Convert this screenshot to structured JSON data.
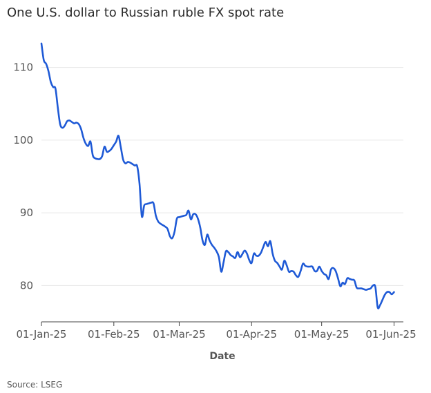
{
  "chart_data": {
    "type": "line",
    "title": "One U.S. dollar to Russian ruble FX spot rate",
    "xlabel": "Date",
    "ylabel": "",
    "source": "Source: LSEG",
    "xlim": [
      "2025-01-01",
      "2025-06-05"
    ],
    "ylim": [
      75,
      115
    ],
    "grid": true,
    "legend": "none",
    "x_ticks": [
      {
        "date": "2025-01-01",
        "label": "01-Jan-25"
      },
      {
        "date": "2025-02-01",
        "label": "01-Feb-25"
      },
      {
        "date": "2025-03-01",
        "label": "01-Mar-25"
      },
      {
        "date": "2025-04-01",
        "label": "01-Apr-25"
      },
      {
        "date": "2025-05-01",
        "label": "01-May-25"
      },
      {
        "date": "2025-06-01",
        "label": "01-Jun-25"
      }
    ],
    "y_ticks": [
      {
        "value": 80,
        "label": "80"
      },
      {
        "value": 90,
        "label": "90"
      },
      {
        "value": 100,
        "label": "100"
      },
      {
        "value": 110,
        "label": "110"
      }
    ],
    "series": [
      {
        "name": "",
        "color": "#1f5ad6",
        "points": [
          [
            "2025-01-01",
            113.3
          ],
          [
            "2025-01-02",
            111.0
          ],
          [
            "2025-01-03",
            110.5
          ],
          [
            "2025-01-04",
            109.5
          ],
          [
            "2025-01-05",
            108.0
          ],
          [
            "2025-01-06",
            107.3
          ],
          [
            "2025-01-07",
            107.1
          ],
          [
            "2025-01-08",
            104.5
          ],
          [
            "2025-01-09",
            102.2
          ],
          [
            "2025-01-10",
            101.7
          ],
          [
            "2025-01-11",
            102.0
          ],
          [
            "2025-01-12",
            102.6
          ],
          [
            "2025-01-13",
            102.7
          ],
          [
            "2025-01-14",
            102.5
          ],
          [
            "2025-01-15",
            102.3
          ],
          [
            "2025-01-16",
            102.4
          ],
          [
            "2025-01-17",
            102.2
          ],
          [
            "2025-01-18",
            101.5
          ],
          [
            "2025-01-19",
            100.3
          ],
          [
            "2025-01-20",
            99.5
          ],
          [
            "2025-01-21",
            99.2
          ],
          [
            "2025-01-22",
            99.8
          ],
          [
            "2025-01-23",
            97.9
          ],
          [
            "2025-01-24",
            97.5
          ],
          [
            "2025-01-25",
            97.4
          ],
          [
            "2025-01-26",
            97.4
          ],
          [
            "2025-01-27",
            97.8
          ],
          [
            "2025-01-28",
            99.1
          ],
          [
            "2025-01-29",
            98.4
          ],
          [
            "2025-01-30",
            98.5
          ],
          [
            "2025-01-31",
            98.8
          ],
          [
            "2025-02-01",
            99.3
          ],
          [
            "2025-02-02",
            99.8
          ],
          [
            "2025-02-03",
            100.6
          ],
          [
            "2025-02-04",
            99.0
          ],
          [
            "2025-02-05",
            97.3
          ],
          [
            "2025-02-06",
            96.8
          ],
          [
            "2025-02-07",
            97.0
          ],
          [
            "2025-02-08",
            96.9
          ],
          [
            "2025-02-09",
            96.7
          ],
          [
            "2025-02-10",
            96.5
          ],
          [
            "2025-02-11",
            96.4
          ],
          [
            "2025-02-12",
            94.0
          ],
          [
            "2025-02-13",
            89.5
          ],
          [
            "2025-02-14",
            91.0
          ],
          [
            "2025-02-15",
            91.2
          ],
          [
            "2025-02-16",
            91.3
          ],
          [
            "2025-02-17",
            91.4
          ],
          [
            "2025-02-18",
            91.3
          ],
          [
            "2025-02-19",
            89.6
          ],
          [
            "2025-02-20",
            88.8
          ],
          [
            "2025-02-21",
            88.5
          ],
          [
            "2025-02-22",
            88.3
          ],
          [
            "2025-02-23",
            88.1
          ],
          [
            "2025-02-24",
            87.8
          ],
          [
            "2025-02-25",
            86.8
          ],
          [
            "2025-02-26",
            86.5
          ],
          [
            "2025-02-27",
            87.4
          ],
          [
            "2025-02-28",
            89.2
          ],
          [
            "2025-03-01",
            89.4
          ],
          [
            "2025-03-02",
            89.5
          ],
          [
            "2025-03-03",
            89.6
          ],
          [
            "2025-03-04",
            89.7
          ],
          [
            "2025-03-05",
            90.3
          ],
          [
            "2025-03-06",
            89.1
          ],
          [
            "2025-03-07",
            89.8
          ],
          [
            "2025-03-08",
            89.8
          ],
          [
            "2025-03-09",
            89.2
          ],
          [
            "2025-03-10",
            88.0
          ],
          [
            "2025-03-11",
            86.2
          ],
          [
            "2025-03-12",
            85.6
          ],
          [
            "2025-03-13",
            87.0
          ],
          [
            "2025-03-14",
            86.2
          ],
          [
            "2025-03-15",
            85.6
          ],
          [
            "2025-03-16",
            85.2
          ],
          [
            "2025-03-17",
            84.7
          ],
          [
            "2025-03-18",
            83.9
          ],
          [
            "2025-03-19",
            81.9
          ],
          [
            "2025-03-20",
            83.2
          ],
          [
            "2025-03-21",
            84.7
          ],
          [
            "2025-03-22",
            84.6
          ],
          [
            "2025-03-23",
            84.2
          ],
          [
            "2025-03-24",
            84.0
          ],
          [
            "2025-03-25",
            83.8
          ],
          [
            "2025-03-26",
            84.6
          ],
          [
            "2025-03-27",
            83.9
          ],
          [
            "2025-03-28",
            84.3
          ],
          [
            "2025-03-29",
            84.8
          ],
          [
            "2025-03-30",
            84.4
          ],
          [
            "2025-03-31",
            83.5
          ],
          [
            "2025-04-01",
            83.1
          ],
          [
            "2025-04-02",
            84.4
          ],
          [
            "2025-04-03",
            84.1
          ],
          [
            "2025-04-04",
            84.1
          ],
          [
            "2025-04-05",
            84.5
          ],
          [
            "2025-04-06",
            85.3
          ],
          [
            "2025-04-07",
            86.0
          ],
          [
            "2025-04-08",
            85.4
          ],
          [
            "2025-04-09",
            86.1
          ],
          [
            "2025-04-10",
            84.4
          ],
          [
            "2025-04-11",
            83.4
          ],
          [
            "2025-04-12",
            83.1
          ],
          [
            "2025-04-13",
            82.6
          ],
          [
            "2025-04-14",
            82.2
          ],
          [
            "2025-04-15",
            83.4
          ],
          [
            "2025-04-16",
            82.8
          ],
          [
            "2025-04-17",
            81.9
          ],
          [
            "2025-04-18",
            82.0
          ],
          [
            "2025-04-19",
            81.9
          ],
          [
            "2025-04-20",
            81.4
          ],
          [
            "2025-04-21",
            81.2
          ],
          [
            "2025-04-22",
            82.0
          ],
          [
            "2025-04-23",
            83.0
          ],
          [
            "2025-04-24",
            82.7
          ],
          [
            "2025-04-25",
            82.6
          ],
          [
            "2025-04-26",
            82.6
          ],
          [
            "2025-04-27",
            82.6
          ],
          [
            "2025-04-28",
            82.0
          ],
          [
            "2025-04-29",
            82.0
          ],
          [
            "2025-04-30",
            82.6
          ],
          [
            "2025-05-01",
            82.0
          ],
          [
            "2025-05-02",
            81.6
          ],
          [
            "2025-05-03",
            81.4
          ],
          [
            "2025-05-04",
            80.9
          ],
          [
            "2025-05-05",
            82.2
          ],
          [
            "2025-05-06",
            82.4
          ],
          [
            "2025-05-07",
            82.0
          ],
          [
            "2025-05-08",
            81.0
          ],
          [
            "2025-05-09",
            79.9
          ],
          [
            "2025-05-10",
            80.4
          ],
          [
            "2025-05-11",
            80.2
          ],
          [
            "2025-05-12",
            81.0
          ],
          [
            "2025-05-13",
            80.9
          ],
          [
            "2025-05-14",
            80.8
          ],
          [
            "2025-05-15",
            80.7
          ],
          [
            "2025-05-16",
            79.7
          ],
          [
            "2025-05-17",
            79.6
          ],
          [
            "2025-05-18",
            79.6
          ],
          [
            "2025-05-19",
            79.5
          ],
          [
            "2025-05-20",
            79.4
          ],
          [
            "2025-05-21",
            79.5
          ],
          [
            "2025-05-22",
            79.6
          ],
          [
            "2025-05-23",
            80.0
          ],
          [
            "2025-05-24",
            79.8
          ],
          [
            "2025-05-25",
            77.0
          ],
          [
            "2025-05-26",
            77.3
          ],
          [
            "2025-05-27",
            78.0
          ],
          [
            "2025-05-28",
            78.7
          ],
          [
            "2025-05-29",
            79.1
          ],
          [
            "2025-05-30",
            79.1
          ],
          [
            "2025-05-31",
            78.8
          ],
          [
            "2025-06-01",
            79.1
          ]
        ]
      }
    ]
  }
}
